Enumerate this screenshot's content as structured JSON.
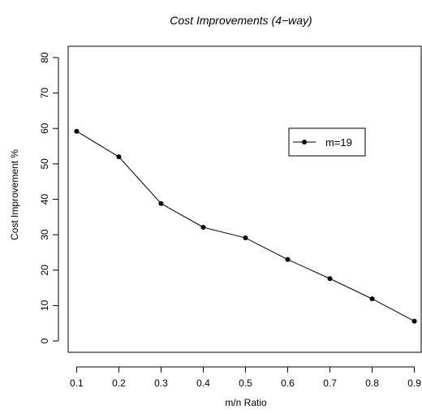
{
  "chart_data": {
    "type": "line",
    "title": "Cost Improvements (4−way)",
    "xlabel": "m/n Ratio",
    "ylabel": "Cost Improvement %",
    "x": [
      0.1,
      0.2,
      0.3,
      0.4,
      0.5,
      0.6,
      0.7,
      0.8,
      0.9
    ],
    "xticks": [
      0.1,
      0.2,
      0.3,
      0.4,
      0.5,
      0.6,
      0.7,
      0.8,
      0.9
    ],
    "yticks": [
      0,
      10,
      20,
      30,
      40,
      50,
      60,
      70,
      80
    ],
    "xlim": [
      0.08,
      0.92
    ],
    "ylim": [
      -3.2,
      83.2
    ],
    "grid": false,
    "legend_position": "right",
    "series": [
      {
        "name": "m=19",
        "color": "#000000",
        "marker": "filled-circle",
        "values": [
          59.2,
          52.0,
          38.8,
          32.1,
          29.1,
          23.0,
          17.6,
          11.9,
          5.6
        ]
      }
    ]
  }
}
